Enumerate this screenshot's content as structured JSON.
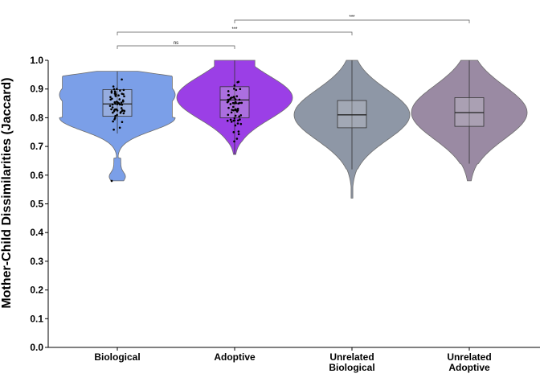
{
  "chart_data": {
    "type": "violin",
    "ylabel": "Mother-Child Dissimilarities (Jaccard)",
    "xlabel": "",
    "ylim": [
      0.0,
      1.0
    ],
    "yticks": [
      "0.0",
      "0.1",
      "0.2",
      "0.3",
      "0.4",
      "0.5",
      "0.6",
      "0.7",
      "0.8",
      "0.9",
      "1.0"
    ],
    "grid": false,
    "categories": [
      {
        "name": "Biological",
        "lines": [
          "Biological"
        ],
        "color": "#7b9fe8",
        "min": 0.58,
        "q1": 0.805,
        "median": 0.848,
        "q3": 0.898,
        "max": 0.962,
        "whisker_low": 0.745,
        "points": true
      },
      {
        "name": "Adoptive",
        "lines": [
          "Adoptive"
        ],
        "color": "#9b3fe6",
        "min": 0.672,
        "q1": 0.8,
        "median": 0.862,
        "q3": 0.908,
        "max": 1.0,
        "whisker_low": 0.672,
        "points": true
      },
      {
        "name": "Unrelated Biological",
        "lines": [
          "Unrelated",
          "Biological"
        ],
        "color": "#8e97a6",
        "min": 0.52,
        "q1": 0.765,
        "median": 0.81,
        "q3": 0.86,
        "max": 1.0,
        "whisker_low": 0.62,
        "points": false
      },
      {
        "name": "Unrelated Adoptive",
        "lines": [
          "Unrelated",
          "Adoptive"
        ],
        "color": "#9a8aa3",
        "min": 0.58,
        "q1": 0.77,
        "median": 0.818,
        "q3": 0.87,
        "max": 1.0,
        "whisker_low": 0.64,
        "points": false
      }
    ],
    "comparisons": [
      {
        "from": "Biological",
        "to": "Adoptive",
        "label": "ns"
      },
      {
        "from": "Biological",
        "to": "Unrelated Biological",
        "label": "***"
      },
      {
        "from": "Adoptive",
        "to": "Unrelated Adoptive",
        "label": "***"
      }
    ]
  }
}
